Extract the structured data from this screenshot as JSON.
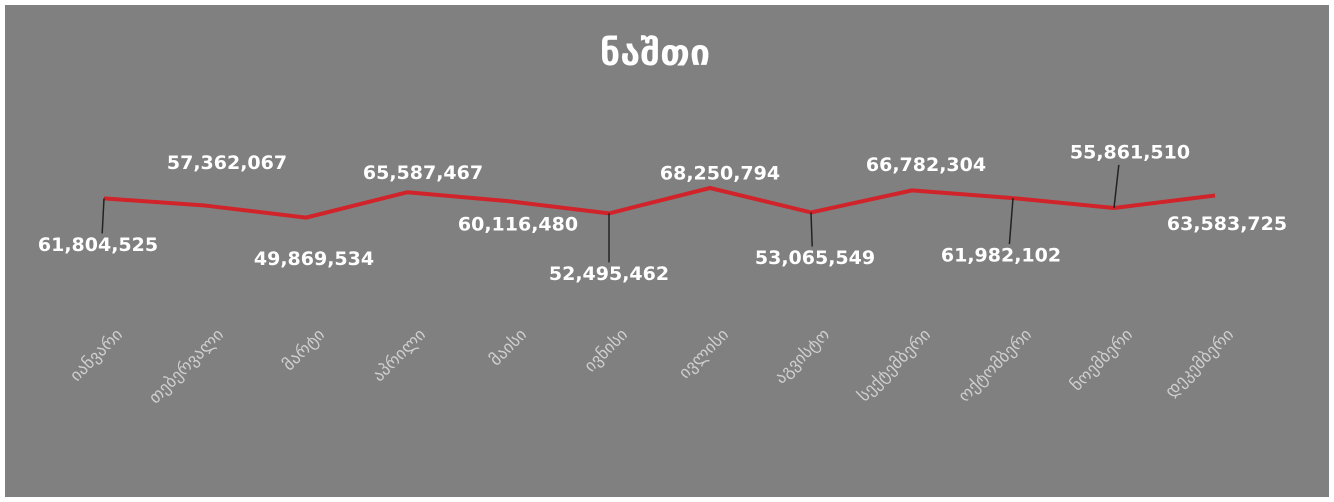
{
  "chart_data": {
    "type": "line",
    "title": "ნაშთი",
    "categories": [
      "იანვარი",
      "თებერვალი",
      "მარტი",
      "აპრილი",
      "მაისი",
      "ივნისი",
      "ივლისი",
      "აგვისტო",
      "სექტემბერი",
      "ოქტომბერი",
      "ნოემბერი",
      "დეკემბერი"
    ],
    "series": [
      {
        "name": "ნაშთი",
        "color": "#d0232a",
        "values": [
          61804525,
          57362067,
          49869534,
          65587467,
          60116480,
          52495462,
          68250794,
          53065549,
          66782304,
          61982102,
          55861510,
          63583725
        ],
        "value_labels": [
          "61,804,525",
          "57,362,067",
          "49,869,534",
          "65,587,467",
          "60,116,480",
          "52,495,462",
          "68,250,794",
          "53,065,549",
          "66,782,304",
          "61,982,102",
          "55,861,510",
          "63,583,725"
        ]
      }
    ]
  }
}
